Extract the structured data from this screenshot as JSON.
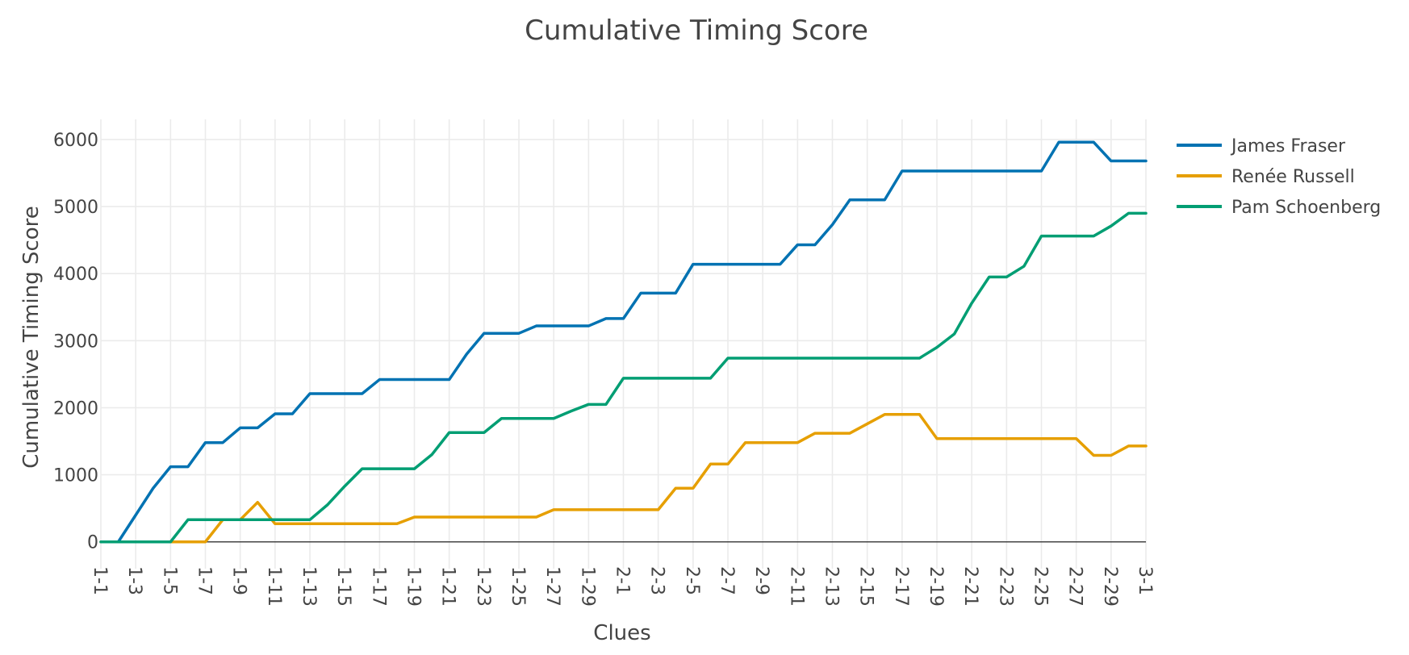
{
  "chart_data": {
    "type": "line",
    "title": "Cumulative Timing Score",
    "xlabel": "Clues",
    "ylabel": "Cumulative Timing Score",
    "ylim": [
      -400,
      6300
    ],
    "yticks": [
      0,
      1000,
      2000,
      3000,
      4000,
      5000,
      6000
    ],
    "grid": true,
    "legend_position": "top-right",
    "tick_label_step": 2,
    "categories": [
      "1-1",
      "1-2",
      "1-3",
      "1-4",
      "1-5",
      "1-6",
      "1-7",
      "1-8",
      "1-9",
      "1-10",
      "1-11",
      "1-12",
      "1-13",
      "1-14",
      "1-15",
      "1-16",
      "1-17",
      "1-18",
      "1-19",
      "1-20",
      "1-21",
      "1-22",
      "1-23",
      "1-24",
      "1-25",
      "1-26",
      "1-27",
      "1-28",
      "1-29",
      "1-30",
      "2-1",
      "2-2",
      "2-3",
      "2-4",
      "2-5",
      "2-6",
      "2-7",
      "2-8",
      "2-9",
      "2-10",
      "2-11",
      "2-12",
      "2-13",
      "2-14",
      "2-15",
      "2-16",
      "2-17",
      "2-18",
      "2-19",
      "2-20",
      "2-21",
      "2-22",
      "2-23",
      "2-24",
      "2-25",
      "2-26",
      "2-27",
      "2-28",
      "2-29",
      "2-30",
      "3-1"
    ],
    "series": [
      {
        "name": "James Fraser",
        "color": "#0072B2",
        "values": [
          0,
          0,
          400,
          800,
          1120,
          1120,
          1480,
          1480,
          1700,
          1700,
          1910,
          1910,
          2210,
          2210,
          2210,
          2210,
          2420,
          2420,
          2420,
          2420,
          2420,
          2800,
          3110,
          3110,
          3110,
          3220,
          3220,
          3220,
          3220,
          3330,
          3330,
          3710,
          3710,
          3710,
          4140,
          4140,
          4140,
          4140,
          4140,
          4140,
          4430,
          4430,
          4730,
          5100,
          5100,
          5100,
          5530,
          5530,
          5530,
          5530,
          5530,
          5530,
          5530,
          5530,
          5530,
          5960,
          5960,
          5960,
          5680,
          5680,
          5680
        ]
      },
      {
        "name": "Renée Russell",
        "color": "#E69F00",
        "values": [
          0,
          0,
          0,
          0,
          0,
          0,
          0,
          330,
          330,
          590,
          270,
          270,
          270,
          270,
          270,
          270,
          270,
          270,
          370,
          370,
          370,
          370,
          370,
          370,
          370,
          370,
          480,
          480,
          480,
          480,
          480,
          480,
          480,
          800,
          800,
          1160,
          1160,
          1480,
          1480,
          1480,
          1480,
          1620,
          1620,
          1620,
          1760,
          1900,
          1900,
          1900,
          1540,
          1540,
          1540,
          1540,
          1540,
          1540,
          1540,
          1540,
          1540,
          1290,
          1290,
          1430,
          1430
        ]
      },
      {
        "name": "Pam Schoenberg",
        "color": "#009E73",
        "values": [
          0,
          0,
          0,
          0,
          0,
          330,
          330,
          330,
          330,
          330,
          330,
          330,
          330,
          550,
          830,
          1090,
          1090,
          1090,
          1090,
          1300,
          1630,
          1630,
          1630,
          1840,
          1840,
          1840,
          1840,
          1950,
          2050,
          2050,
          2440,
          2440,
          2440,
          2440,
          2440,
          2440,
          2740,
          2740,
          2740,
          2740,
          2740,
          2740,
          2740,
          2740,
          2740,
          2740,
          2740,
          2740,
          2900,
          3100,
          3560,
          3950,
          3950,
          4110,
          4560,
          4560,
          4560,
          4560,
          4710,
          4900,
          4900
        ]
      }
    ]
  }
}
